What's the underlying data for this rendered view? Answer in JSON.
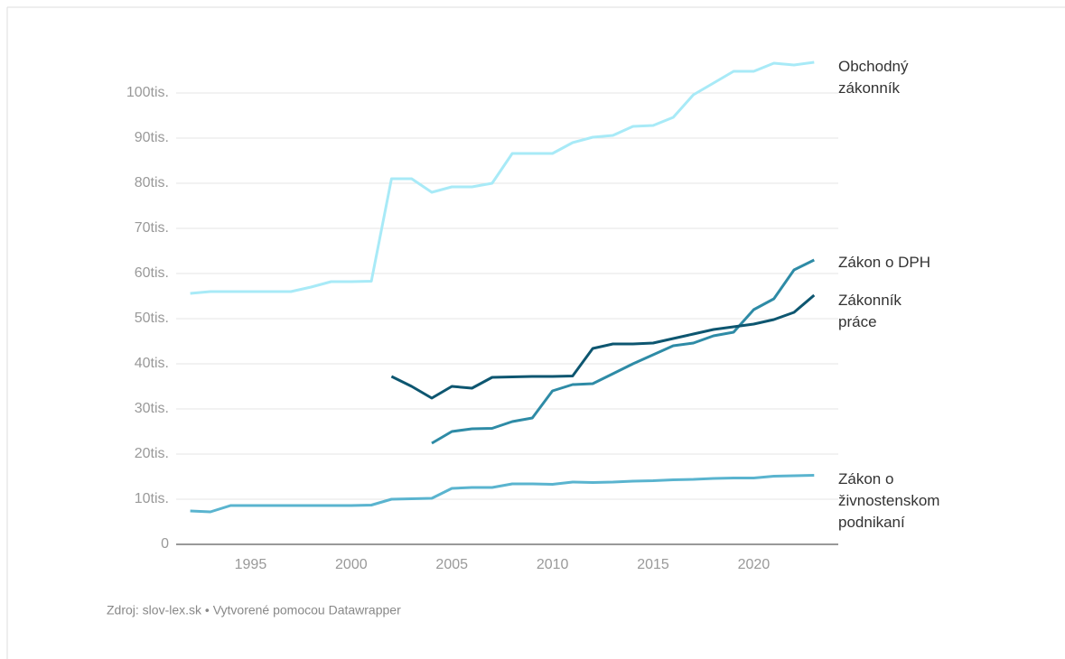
{
  "chart_data": {
    "type": "line",
    "source": "Zdroj: slov-lex.sk • Vytvorené pomocou Datawrapper",
    "x": [
      1992,
      1993,
      1994,
      1995,
      1996,
      1997,
      1998,
      1999,
      2000,
      2001,
      2002,
      2003,
      2004,
      2005,
      2006,
      2007,
      2008,
      2009,
      2010,
      2011,
      2012,
      2013,
      2014,
      2015,
      2016,
      2017,
      2018,
      2019,
      2020,
      2021,
      2022,
      2023
    ],
    "xlim": [
      1991.3,
      2024.2
    ],
    "xticks": [
      1995,
      2000,
      2005,
      2010,
      2015,
      2020
    ],
    "ylim": [
      0,
      108000
    ],
    "yticks": [
      0,
      {
        "value": 10000,
        "label": "10tis."
      },
      {
        "value": 20000,
        "label": "20tis."
      },
      {
        "value": 30000,
        "label": "30tis."
      },
      {
        "value": 40000,
        "label": "40tis."
      },
      {
        "value": 50000,
        "label": "50tis."
      },
      {
        "value": 60000,
        "label": "60tis."
      },
      {
        "value": 70000,
        "label": "70tis."
      },
      {
        "value": 80000,
        "label": "80tis."
      },
      {
        "value": 90000,
        "label": "90tis."
      },
      {
        "value": 100000,
        "label": "100tis."
      }
    ],
    "grid": true,
    "series": [
      {
        "name": "Obchodný zákonník",
        "color": "#a8eaf7",
        "values": [
          55600,
          56000,
          56000,
          56000,
          56000,
          56000,
          57000,
          58200,
          58200,
          58300,
          81000,
          81000,
          78000,
          79200,
          79200,
          80000,
          86600,
          86600,
          86600,
          89000,
          90200,
          90600,
          92600,
          92800,
          94600,
          99600,
          102200,
          104800,
          104800,
          106600,
          106200,
          106800
        ]
      },
      {
        "name": "Zákon o DPH",
        "color": "#2e8ba6",
        "values": [
          null,
          null,
          null,
          null,
          null,
          null,
          null,
          null,
          null,
          null,
          null,
          null,
          22400,
          25000,
          25600,
          25700,
          27200,
          28000,
          34000,
          35400,
          35600,
          37800,
          40000,
          42000,
          44000,
          44600,
          46200,
          47000,
          52000,
          54400,
          60800,
          63000
        ]
      },
      {
        "name": "Zákonník práce",
        "color": "#0d5670",
        "values": [
          null,
          null,
          null,
          null,
          null,
          null,
          null,
          null,
          null,
          null,
          37200,
          35000,
          32400,
          35000,
          34600,
          37000,
          37100,
          37200,
          37200,
          37300,
          43400,
          44400,
          44400,
          44600,
          45600,
          46600,
          47600,
          48200,
          48800,
          49800,
          51400,
          55200
        ]
      },
      {
        "name": "Zákon o živnostenskom podnikaní",
        "color": "#5ab4cf",
        "values": [
          7400,
          7200,
          8600,
          8600,
          8600,
          8600,
          8600,
          8600,
          8600,
          8700,
          10000,
          10100,
          10200,
          12400,
          12600,
          12600,
          13400,
          13400,
          13300,
          13800,
          13700,
          13800,
          14000,
          14100,
          14300,
          14400,
          14600,
          14700,
          14700,
          15100,
          15200,
          15300
        ]
      }
    ]
  }
}
